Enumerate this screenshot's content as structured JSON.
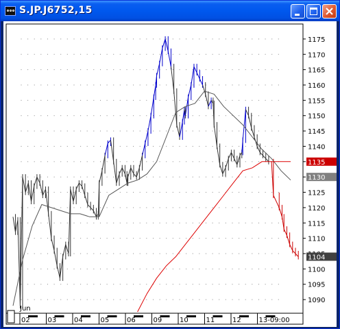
{
  "window": {
    "title": "S.JP.J6752,15",
    "buttons": {
      "minimize": "minimize",
      "maximize": "maximize",
      "close": "close"
    }
  },
  "chart_data": {
    "type": "line",
    "xlabel": "",
    "ylabel": "",
    "grid": true,
    "ylim": [
      1086,
      1179
    ],
    "yticks": [
      1090,
      1095,
      1100,
      1105,
      1110,
      1115,
      1120,
      1125,
      1130,
      1135,
      1140,
      1145,
      1150,
      1155,
      1160,
      1165,
      1170,
      1175
    ],
    "xticks": [
      "02",
      "03",
      "04",
      "05",
      "06",
      "09",
      "10",
      "11",
      "12",
      "13-09:00"
    ],
    "month_label": "Jun",
    "last_price_labels": [
      {
        "value": "1135",
        "color": "#cc0000"
      },
      {
        "value": "1130",
        "color": "#808080"
      },
      {
        "value": "1104",
        "color": "#404040"
      }
    ],
    "colors": {
      "up": "#0000cc",
      "neutral": "#333333",
      "down": "#cc0000",
      "ma_short": "#555555",
      "ma_long": "#dd0000",
      "grid": "#888888"
    },
    "series": [
      {
        "kind": "price",
        "points": [
          [
            0,
            1117
          ],
          [
            0.25,
            1112
          ],
          [
            0.5,
            1116
          ],
          [
            0.75,
            1088
          ],
          [
            1,
            1130
          ],
          [
            1.3,
            1125
          ],
          [
            1.6,
            1128
          ],
          [
            1.9,
            1122
          ],
          [
            2.2,
            1127
          ],
          [
            2.5,
            1130
          ],
          [
            2.8,
            1128
          ],
          [
            3.1,
            1124
          ],
          [
            3.4,
            1126
          ],
          [
            3.7,
            1118
          ],
          [
            4.0,
            1110
          ],
          [
            4.3,
            1106
          ],
          [
            4.6,
            1101
          ],
          [
            4.9,
            1097
          ],
          [
            5.2,
            1104
          ],
          [
            5.5,
            1108
          ],
          [
            5.8,
            1105
          ],
          [
            6,
            1126
          ],
          [
            6.3,
            1122
          ],
          [
            6.6,
            1126
          ],
          [
            6.9,
            1128
          ],
          [
            7.2,
            1127
          ],
          [
            7.5,
            1124
          ],
          [
            7.8,
            1121
          ],
          [
            8.1,
            1120
          ],
          [
            8.4,
            1119
          ],
          [
            8.7,
            1117
          ],
          [
            8.9,
            1118
          ],
          [
            9,
            1128
          ],
          [
            9.3,
            1132
          ],
          [
            9.6,
            1137
          ],
          [
            9.9,
            1141
          ],
          [
            10.2,
            1142
          ],
          [
            10.5,
            1135
          ],
          [
            10.8,
            1128
          ],
          [
            11.1,
            1131
          ],
          [
            11.4,
            1133
          ],
          [
            11.7,
            1131
          ],
          [
            11.9,
            1128
          ],
          [
            12,
            1130
          ],
          [
            12.3,
            1133
          ],
          [
            12.6,
            1131
          ],
          [
            12.9,
            1130
          ],
          [
            13.2,
            1133
          ],
          [
            13.5,
            1137
          ],
          [
            13.8,
            1141
          ],
          [
            14.1,
            1145
          ],
          [
            14.4,
            1150
          ],
          [
            14.7,
            1156
          ],
          [
            14.9,
            1160
          ],
          [
            15,
            1163
          ],
          [
            15.3,
            1167
          ],
          [
            15.6,
            1172
          ],
          [
            15.9,
            1175
          ],
          [
            16.2,
            1171
          ],
          [
            16.5,
            1166
          ],
          [
            16.8,
            1158
          ],
          [
            17.1,
            1147
          ],
          [
            17.4,
            1143
          ],
          [
            17.7,
            1148
          ],
          [
            17.9,
            1152
          ],
          [
            18,
            1150
          ],
          [
            18.3,
            1156
          ],
          [
            18.6,
            1160
          ],
          [
            18.9,
            1166
          ],
          [
            19.2,
            1164
          ],
          [
            19.5,
            1162
          ],
          [
            19.8,
            1160
          ],
          [
            20.1,
            1157
          ],
          [
            20.4,
            1153
          ],
          [
            20.7,
            1155
          ],
          [
            20.9,
            1154
          ],
          [
            21,
            1147
          ],
          [
            21.3,
            1140
          ],
          [
            21.6,
            1134
          ],
          [
            21.9,
            1131
          ],
          [
            22.2,
            1133
          ],
          [
            22.5,
            1136
          ],
          [
            22.8,
            1138
          ],
          [
            23.1,
            1136
          ],
          [
            23.4,
            1134
          ],
          [
            23.7,
            1137
          ],
          [
            23.9,
            1138
          ],
          [
            24,
            1142
          ],
          [
            24.3,
            1152
          ],
          [
            24.6,
            1150
          ],
          [
            24.9,
            1146
          ],
          [
            25.2,
            1143
          ],
          [
            25.5,
            1140
          ],
          [
            25.8,
            1138
          ],
          [
            26.1,
            1137
          ],
          [
            26.4,
            1136
          ],
          [
            26.7,
            1135
          ]
        ]
      },
      {
        "kind": "price_down",
        "points": [
          [
            27,
            1135
          ],
          [
            27.2,
            1124
          ],
          [
            27.8,
            1120
          ],
          [
            28.1,
            1117
          ],
          [
            28.3,
            1113
          ],
          [
            28.6,
            1111
          ],
          [
            28.9,
            1108
          ],
          [
            29.2,
            1106
          ],
          [
            29.5,
            1105
          ],
          [
            29.8,
            1104
          ]
        ]
      },
      {
        "kind": "ma_short",
        "points": [
          [
            0,
            1088
          ],
          [
            1,
            1103
          ],
          [
            2,
            1114
          ],
          [
            3,
            1121
          ],
          [
            4,
            1120
          ],
          [
            5,
            1119
          ],
          [
            6,
            1118
          ],
          [
            7,
            1118
          ],
          [
            8,
            1117
          ],
          [
            9,
            1117
          ],
          [
            10,
            1124
          ],
          [
            11,
            1126
          ],
          [
            12,
            1128
          ],
          [
            13,
            1129
          ],
          [
            14,
            1131
          ],
          [
            15,
            1135
          ],
          [
            16,
            1143
          ],
          [
            17,
            1151
          ],
          [
            18,
            1153
          ],
          [
            19,
            1154
          ],
          [
            20,
            1158
          ],
          [
            21,
            1157
          ],
          [
            22,
            1153
          ],
          [
            23,
            1150
          ],
          [
            24,
            1147
          ],
          [
            25,
            1143
          ],
          [
            26,
            1139
          ],
          [
            27,
            1136
          ],
          [
            28,
            1132
          ],
          [
            29,
            1129
          ]
        ]
      },
      {
        "kind": "ma_long",
        "points": [
          [
            13,
            1086
          ],
          [
            14,
            1092
          ],
          [
            15,
            1097
          ],
          [
            16,
            1101
          ],
          [
            17,
            1104
          ],
          [
            18,
            1108
          ],
          [
            19,
            1112
          ],
          [
            20,
            1116
          ],
          [
            21,
            1120
          ],
          [
            22,
            1124
          ],
          [
            23,
            1128
          ],
          [
            24,
            1132
          ],
          [
            25,
            1133
          ],
          [
            26,
            1135
          ],
          [
            27,
            1135
          ],
          [
            28,
            1135
          ],
          [
            29,
            1135
          ]
        ]
      }
    ]
  }
}
